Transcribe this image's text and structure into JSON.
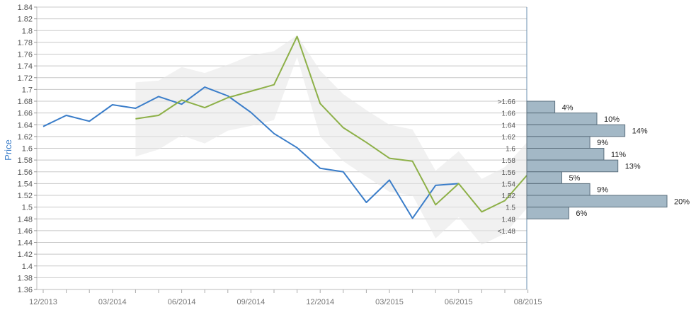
{
  "chart_data": {
    "type": "line",
    "ylabel": "Price",
    "xlabel": "",
    "ylim": [
      1.36,
      1.84
    ],
    "grid": true,
    "y_ticks": [
      "1.36",
      "1.38",
      "1.4",
      "1.42",
      "1.44",
      "1.46",
      "1.48",
      "1.5",
      "1.52",
      "1.54",
      "1.56",
      "1.58",
      "1.6",
      "1.62",
      "1.64",
      "1.66",
      "1.68",
      "1.7",
      "1.72",
      "1.74",
      "1.76",
      "1.78",
      "1.8",
      "1.82",
      "1.84"
    ],
    "x_ticks": [
      "12/2013",
      "03/2014",
      "06/2014",
      "09/2014",
      "12/2014",
      "03/2015",
      "06/2015",
      "08/2015"
    ],
    "series": [
      {
        "color": "#3a7dc9",
        "values": [
          [
            0,
            1.637
          ],
          [
            1,
            1.656
          ],
          [
            2,
            1.646
          ],
          [
            3,
            1.674
          ],
          [
            4,
            1.668
          ],
          [
            5,
            1.688
          ],
          [
            6,
            1.675
          ],
          [
            7,
            1.704
          ],
          [
            8,
            1.689
          ],
          [
            9,
            1.661
          ],
          [
            10,
            1.625
          ],
          [
            11,
            1.601
          ],
          [
            12,
            1.566
          ],
          [
            13,
            1.56
          ],
          [
            14,
            1.508
          ],
          [
            15,
            1.546
          ],
          [
            16,
            1.481
          ],
          [
            17,
            1.537
          ],
          [
            18,
            1.54
          ]
        ]
      },
      {
        "color": "#8db048",
        "values": [
          [
            4,
            1.65
          ],
          [
            5,
            1.656
          ],
          [
            6,
            1.682
          ],
          [
            7,
            1.669
          ],
          [
            8,
            1.686
          ],
          [
            9,
            1.697
          ],
          [
            10,
            1.708
          ],
          [
            11,
            1.79
          ],
          [
            12,
            1.676
          ],
          [
            13,
            1.635
          ],
          [
            14,
            1.61
          ],
          [
            15,
            1.583
          ],
          [
            16,
            1.578
          ],
          [
            17,
            1.504
          ],
          [
            18,
            1.54
          ],
          [
            19,
            1.492
          ],
          [
            20,
            1.511
          ],
          [
            21,
            1.556
          ]
        ]
      }
    ],
    "band": {
      "color": "#e6e6e6",
      "upper": [
        [
          4,
          1.712
        ],
        [
          5,
          1.715
        ],
        [
          6,
          1.738
        ],
        [
          7,
          1.728
        ],
        [
          8,
          1.742
        ],
        [
          9,
          1.758
        ],
        [
          10,
          1.765
        ],
        [
          11,
          1.792
        ],
        [
          12,
          1.732
        ],
        [
          13,
          1.692
        ],
        [
          14,
          1.665
        ],
        [
          15,
          1.64
        ],
        [
          16,
          1.632
        ],
        [
          17,
          1.562
        ],
        [
          18,
          1.595
        ],
        [
          19,
          1.548
        ],
        [
          20,
          1.568
        ],
        [
          21,
          1.612
        ]
      ],
      "lower": [
        [
          4,
          1.586
        ],
        [
          5,
          1.598
        ],
        [
          6,
          1.622
        ],
        [
          7,
          1.608
        ],
        [
          8,
          1.63
        ],
        [
          9,
          1.638
        ],
        [
          10,
          1.648
        ],
        [
          11,
          1.755
        ],
        [
          12,
          1.62
        ],
        [
          13,
          1.578
        ],
        [
          14,
          1.552
        ],
        [
          15,
          1.526
        ],
        [
          16,
          1.52
        ],
        [
          17,
          1.447
        ],
        [
          18,
          1.483
        ],
        [
          19,
          1.436
        ],
        [
          20,
          1.455
        ],
        [
          21,
          1.5
        ]
      ]
    },
    "histogram": {
      "color": "#a3b8c6",
      "bins": [
        {
          "label": ">1.66",
          "pct": "4%",
          "value": 4
        },
        {
          "label": "1.66",
          "pct": "10%",
          "value": 10
        },
        {
          "label": "1.64",
          "pct": "14%",
          "value": 14
        },
        {
          "label": "1.62",
          "pct": "9%",
          "value": 9
        },
        {
          "label": "1.6",
          "pct": "11%",
          "value": 11
        },
        {
          "label": "1.58",
          "pct": "13%",
          "value": 13
        },
        {
          "label": "1.56",
          "pct": "5%",
          "value": 5
        },
        {
          "label": "1.54",
          "pct": "9%",
          "value": 9
        },
        {
          "label": "1.52",
          "pct": "20%",
          "value": 20
        },
        {
          "label": "1.5",
          "pct": "6%",
          "value": 6
        }
      ],
      "extra_labels": [
        "1.48",
        "<1.48"
      ]
    }
  }
}
